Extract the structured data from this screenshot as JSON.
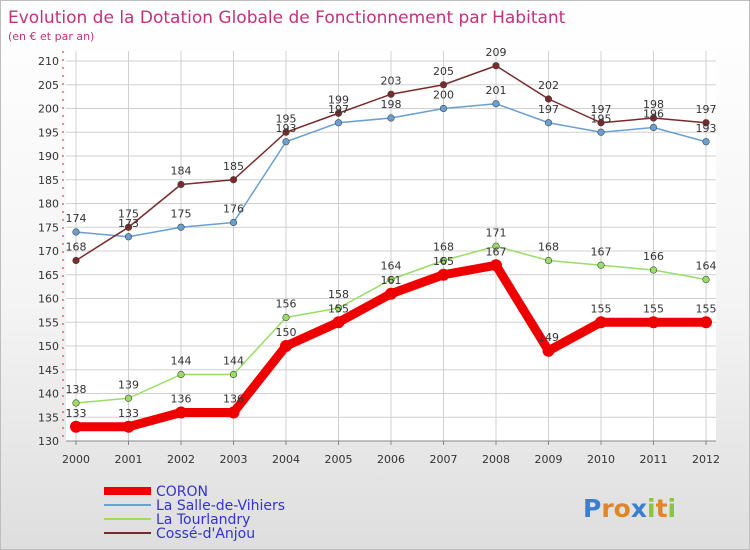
{
  "chart_data": {
    "type": "line",
    "title": "Evolution de la Dotation Globale de Fonctionnement par Habitant",
    "subtitle": "(en € et par an)",
    "xlabel": "",
    "ylabel": "",
    "x": [
      "2000",
      "2001",
      "2002",
      "2003",
      "2004",
      "2005",
      "2006",
      "2007",
      "2008",
      "2009",
      "2010",
      "2011",
      "2012"
    ],
    "ylim": [
      130,
      210
    ],
    "yticks": [
      130,
      135,
      140,
      145,
      150,
      155,
      160,
      165,
      170,
      175,
      180,
      185,
      190,
      195,
      200,
      205,
      210
    ],
    "series": [
      {
        "name": "CORON",
        "color": "#ee0000",
        "values": [
          133,
          133,
          136,
          136,
          150,
          155,
          161,
          165,
          167,
          149,
          155,
          155,
          155
        ],
        "labels": [
          "133",
          "133",
          "136",
          "136",
          "150",
          "155",
          "161",
          "165",
          "167",
          "149",
          "155",
          "155",
          "155"
        ]
      },
      {
        "name": "La Salle-de-Vihiers",
        "color": "#6a9fd2",
        "values": [
          174,
          173,
          175,
          176,
          193,
          197,
          198,
          200,
          201,
          197,
          195,
          196,
          193
        ],
        "labels": [
          "174",
          "173",
          "175",
          "176",
          "193",
          "197",
          "198",
          "200",
          "201",
          "197",
          "195",
          "196",
          "193"
        ]
      },
      {
        "name": "La Tourlandry",
        "color": "#99dd66",
        "values": [
          138,
          139,
          144,
          144,
          156,
          158,
          164,
          168,
          171,
          168,
          167,
          166,
          164
        ],
        "labels": [
          "138",
          "139",
          "144",
          "144",
          "156",
          "158",
          "164",
          "168",
          "171",
          "168",
          "167",
          "166",
          "164"
        ]
      },
      {
        "name": "Cossé-d'Anjou",
        "color": "#7a2a2a",
        "values": [
          168,
          175,
          184,
          185,
          195,
          199,
          203,
          205,
          209,
          202,
          197,
          198,
          197
        ],
        "labels": [
          "168",
          "175",
          "184",
          "185",
          "195",
          "199",
          "203",
          "205",
          "209",
          "202",
          "197",
          "198",
          "197"
        ]
      }
    ],
    "legend_position": "bottom-left",
    "watermark": "Proxiti"
  }
}
